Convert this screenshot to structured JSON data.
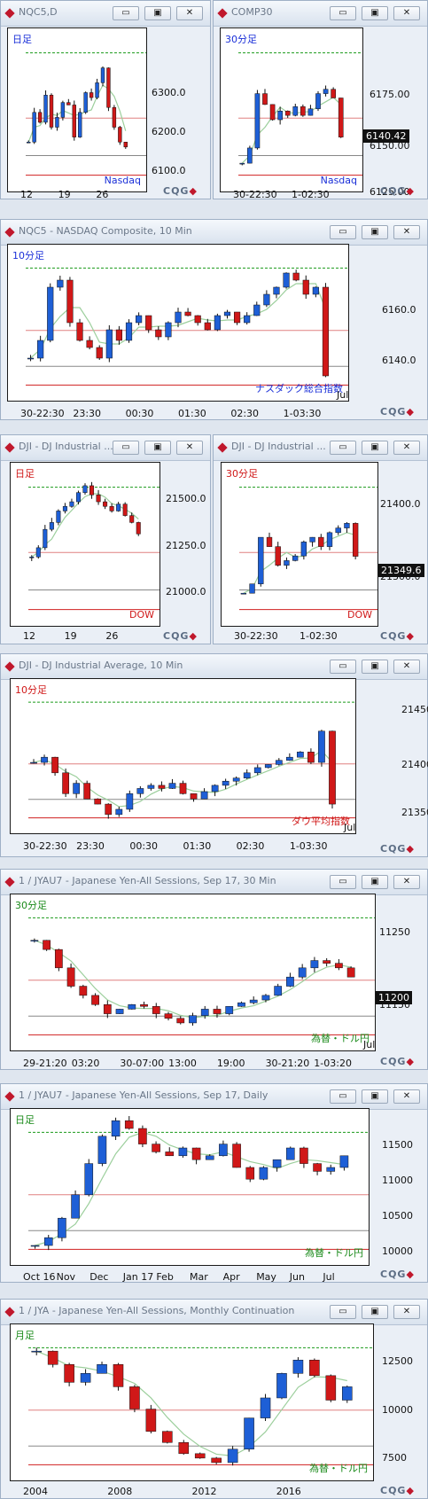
{
  "windows": [
    {
      "id": "w1",
      "title": "NQC5,D",
      "tl": "日足",
      "tlColor": "#1a2fd8",
      "br": "Nasdaq",
      "brColor": "#1a2fd8",
      "yticks": [
        "6300.0",
        "6200.0",
        "6100.0"
      ],
      "xticks": [
        "12",
        "19",
        "26"
      ],
      "btns": [
        "▭",
        "▣",
        "✕"
      ]
    },
    {
      "id": "w2",
      "title": "COMP30",
      "tl": "30分足",
      "tlColor": "#1a2fd8",
      "br": "Nasdaq",
      "brColor": "#1a2fd8",
      "yticks": [
        "6175.00",
        "6150.00",
        "6125.00"
      ],
      "xticks": [
        "30-22:30",
        "1-02:30"
      ],
      "price": "6140.42",
      "btns": [
        "▭",
        "▣",
        "✕"
      ]
    },
    {
      "id": "w3",
      "title": "NQC5 - NASDAQ Composite, 10 Min",
      "tl": "10分足",
      "tlColor": "#1a2fd8",
      "br": "ナスダック総合指数",
      "brColor": "#1a2fd8",
      "yticks": [
        "6160.0",
        "6140.0"
      ],
      "xticks": [
        "30-22:30",
        "23:30",
        "00:30",
        "01:30",
        "02:30",
        "1-03:30"
      ],
      "xend": "Jul",
      "btns": [
        "▭",
        "▣",
        "✕"
      ]
    },
    {
      "id": "w4",
      "title": "DJI - DJ Industrial ...",
      "tl": "日足",
      "tlColor": "#d01818",
      "br": "DOW",
      "brColor": "#d01818",
      "yticks": [
        "21500.0",
        "21250.0",
        "21000.0"
      ],
      "xticks": [
        "12",
        "19",
        "26"
      ],
      "btns": [
        "▭",
        "▣",
        "✕"
      ]
    },
    {
      "id": "w5",
      "title": "DJI - DJ Industrial ...",
      "tl": "30分足",
      "tlColor": "#d01818",
      "br": "DOW",
      "brColor": "#d01818",
      "yticks": [
        "21400.0",
        "21300.0"
      ],
      "xticks": [
        "30-22:30",
        "1-02:30"
      ],
      "price": "21349.6",
      "btns": [
        "▭",
        "▣",
        "✕"
      ]
    },
    {
      "id": "w6",
      "title": "DJI - DJ Industrial Average, 10 Min",
      "tl": "10分足",
      "tlColor": "#d01818",
      "br": "ダウ平均指数",
      "brColor": "#d01818",
      "yticks": [
        "21450.0",
        "21400.0",
        "21350.0"
      ],
      "xticks": [
        "30-22:30",
        "23:30",
        "00:30",
        "01:30",
        "02:30",
        "1-03:30"
      ],
      "xend": "Jul",
      "btns": [
        "▭",
        "▣",
        "✕"
      ]
    },
    {
      "id": "w7",
      "title": "1 / JYAU7 - Japanese Yen-All Sessions, Sep 17, 30 Min",
      "tl": "30分足",
      "tlColor": "#1a8a1a",
      "br": "為替・ドル円",
      "brColor": "#1a8a1a",
      "yticks": [
        "11250",
        "11150"
      ],
      "xticks": [
        "29-21:20",
        "03:20",
        "30-07:00",
        "13:00",
        "19:00",
        "30-21:20",
        "1-03:20"
      ],
      "xend": "Jul",
      "price": "11200",
      "btns": [
        "▭",
        "▣",
        "✕"
      ]
    },
    {
      "id": "w8",
      "title": "1 / JYAU7 - Japanese Yen-All Sessions, Sep 17, Daily",
      "tl": "日足",
      "tlColor": "#1a8a1a",
      "br": "為替・ドル円",
      "brColor": "#1a8a1a",
      "yticks": [
        "11500",
        "11000",
        "10500",
        "10000"
      ],
      "xticks": [
        "Oct 16",
        "Nov",
        "Dec",
        "Jan 17",
        "Feb",
        "Mar",
        "Apr",
        "May",
        "Jun",
        "Jul"
      ],
      "btns": [
        "▭",
        "▣",
        "✕"
      ]
    },
    {
      "id": "w9",
      "title": "1 / JYA - Japanese Yen-All Sessions, Monthly Continuation",
      "tl": "月足",
      "tlColor": "#1a8a1a",
      "br": "為替・ドル円",
      "brColor": "#1a8a1a",
      "yticks": [
        "12500",
        "10000",
        "7500"
      ],
      "xticks": [
        "2004",
        "2008",
        "2012",
        "2016"
      ],
      "btns": [
        "▭",
        "▣",
        "✕"
      ]
    }
  ],
  "chart_data": [
    {
      "type": "candlestick",
      "title": "NQC5,D",
      "ylim": [
        6050,
        6380
      ],
      "series": [
        {
          "name": "close",
          "values": [
            6150,
            6210,
            6190,
            6245,
            6180,
            6200,
            6230,
            6225,
            6160,
            6210,
            6250,
            6240,
            6270,
            6300,
            6220,
            6180,
            6150,
            6140
          ]
        }
      ]
    },
    {
      "type": "candlestick",
      "title": "COMP30",
      "ylim": [
        6115,
        6190
      ],
      "series": [
        {
          "name": "close",
          "values": [
            6128,
            6135,
            6160,
            6155,
            6148,
            6152,
            6150,
            6154,
            6150,
            6153,
            6160,
            6162,
            6158,
            6140
          ]
        }
      ]
    },
    {
      "type": "candlestick",
      "title": "NASDAQ Composite, 10 Min",
      "ylim": [
        6128,
        6172
      ],
      "series": [
        {
          "name": "close",
          "values": [
            6140,
            6145,
            6160,
            6162,
            6150,
            6145,
            6143,
            6140,
            6148,
            6145,
            6150,
            6152,
            6148,
            6146,
            6150,
            6153,
            6152,
            6150,
            6148,
            6152,
            6153,
            6150,
            6152,
            6155,
            6158,
            6160,
            6164,
            6162,
            6158,
            6160,
            6135
          ]
        }
      ]
    },
    {
      "type": "candlestick",
      "title": "DJI daily",
      "ylim": [
        20880,
        21590
      ],
      "series": [
        {
          "name": "close",
          "values": [
            21180,
            21220,
            21300,
            21330,
            21380,
            21400,
            21420,
            21460,
            21490,
            21450,
            21420,
            21400,
            21380,
            21410,
            21360,
            21330,
            21280
          ]
        }
      ]
    },
    {
      "type": "candlestick",
      "title": "DJI 30 Min",
      "ylim": [
        21275,
        21450
      ],
      "series": [
        {
          "name": "close",
          "values": [
            21310,
            21320,
            21370,
            21360,
            21340,
            21345,
            21350,
            21365,
            21370,
            21360,
            21375,
            21380,
            21385,
            21349.6
          ]
        }
      ]
    },
    {
      "type": "candlestick",
      "title": "DJ Industrial Average, 10 Min",
      "ylim": [
        21322,
        21470
      ],
      "series": [
        {
          "name": "close",
          "values": [
            21390,
            21395,
            21380,
            21360,
            21370,
            21355,
            21350,
            21340,
            21345,
            21360,
            21365,
            21368,
            21365,
            21370,
            21360,
            21355,
            21362,
            21368,
            21372,
            21375,
            21380,
            21385,
            21388,
            21392,
            21395,
            21400,
            21390,
            21420,
            21350
          ]
        }
      ]
    },
    {
      "type": "candlestick",
      "title": "JYAU7 30 Min",
      "ylim": [
        11120,
        11290
      ],
      "series": [
        {
          "name": "close",
          "values": [
            11240,
            11230,
            11210,
            11190,
            11180,
            11170,
            11160,
            11165,
            11170,
            11168,
            11160,
            11155,
            11150,
            11158,
            11165,
            11160,
            11168,
            11172,
            11175,
            11180,
            11190,
            11200,
            11210,
            11218,
            11215,
            11210,
            11200
          ]
        }
      ]
    },
    {
      "type": "candlestick",
      "title": "JYAU7 Daily",
      "ylim": [
        9800,
        11800
      ],
      "series": [
        {
          "name": "close",
          "values": [
            10050,
            10150,
            10400,
            10700,
            11100,
            11450,
            11650,
            11550,
            11350,
            11250,
            11200,
            11300,
            11150,
            11200,
            11350,
            11050,
            10900,
            11050,
            11150,
            11300,
            11100,
            11000,
            11050,
            11200
          ]
        }
      ]
    },
    {
      "type": "candlestick",
      "title": "JYA Monthly",
      "ylim": [
        6800,
        13800
      ],
      "series": [
        {
          "name": "close",
          "values": [
            12600,
            12000,
            11200,
            11600,
            12000,
            11000,
            10000,
            9000,
            8500,
            8000,
            7800,
            7600,
            8200,
            9600,
            10500,
            11600,
            12200,
            11500,
            10400,
            11000
          ]
        }
      ]
    }
  ]
}
